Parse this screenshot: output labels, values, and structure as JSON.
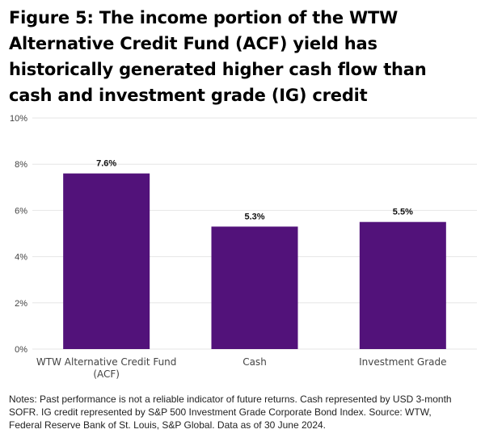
{
  "title_lines": [
    "Figure 5: The income portion of the WTW",
    "Alternative Credit Fund (ACF) yield has",
    "historically generated higher cash flow than",
    "cash and investment grade (IG) credit"
  ],
  "notes_lines": [
    "Notes: Past performance is not a reliable indicator of future returns. Cash represented by USD 3-month",
    "SOFR. IG credit represented by S&P 500 Investment Grade Corporate Bond Index. Source: WTW,",
    "Federal Reserve Bank of St. Louis, S&P Global. Data as of 30 June 2024."
  ],
  "colors": {
    "bar": "#52127a",
    "grid": "#e6e6e6",
    "axis_text": "#444444"
  },
  "chart_data": {
    "type": "bar",
    "categories": [
      [
        "WTW Alternative Credit Fund",
        "(ACF)"
      ],
      [
        "Cash"
      ],
      [
        "Investment Grade"
      ]
    ],
    "values": [
      7.6,
      5.3,
      5.5
    ],
    "data_labels": [
      "7.6%",
      "5.3%",
      "5.5%"
    ],
    "ylim": [
      0,
      10
    ],
    "yticks": [
      0,
      2,
      4,
      6,
      8,
      10
    ],
    "ytick_labels": [
      "0%",
      "2%",
      "4%",
      "6%",
      "8%",
      "10%"
    ],
    "grid": true,
    "xlabel": "",
    "ylabel": ""
  }
}
